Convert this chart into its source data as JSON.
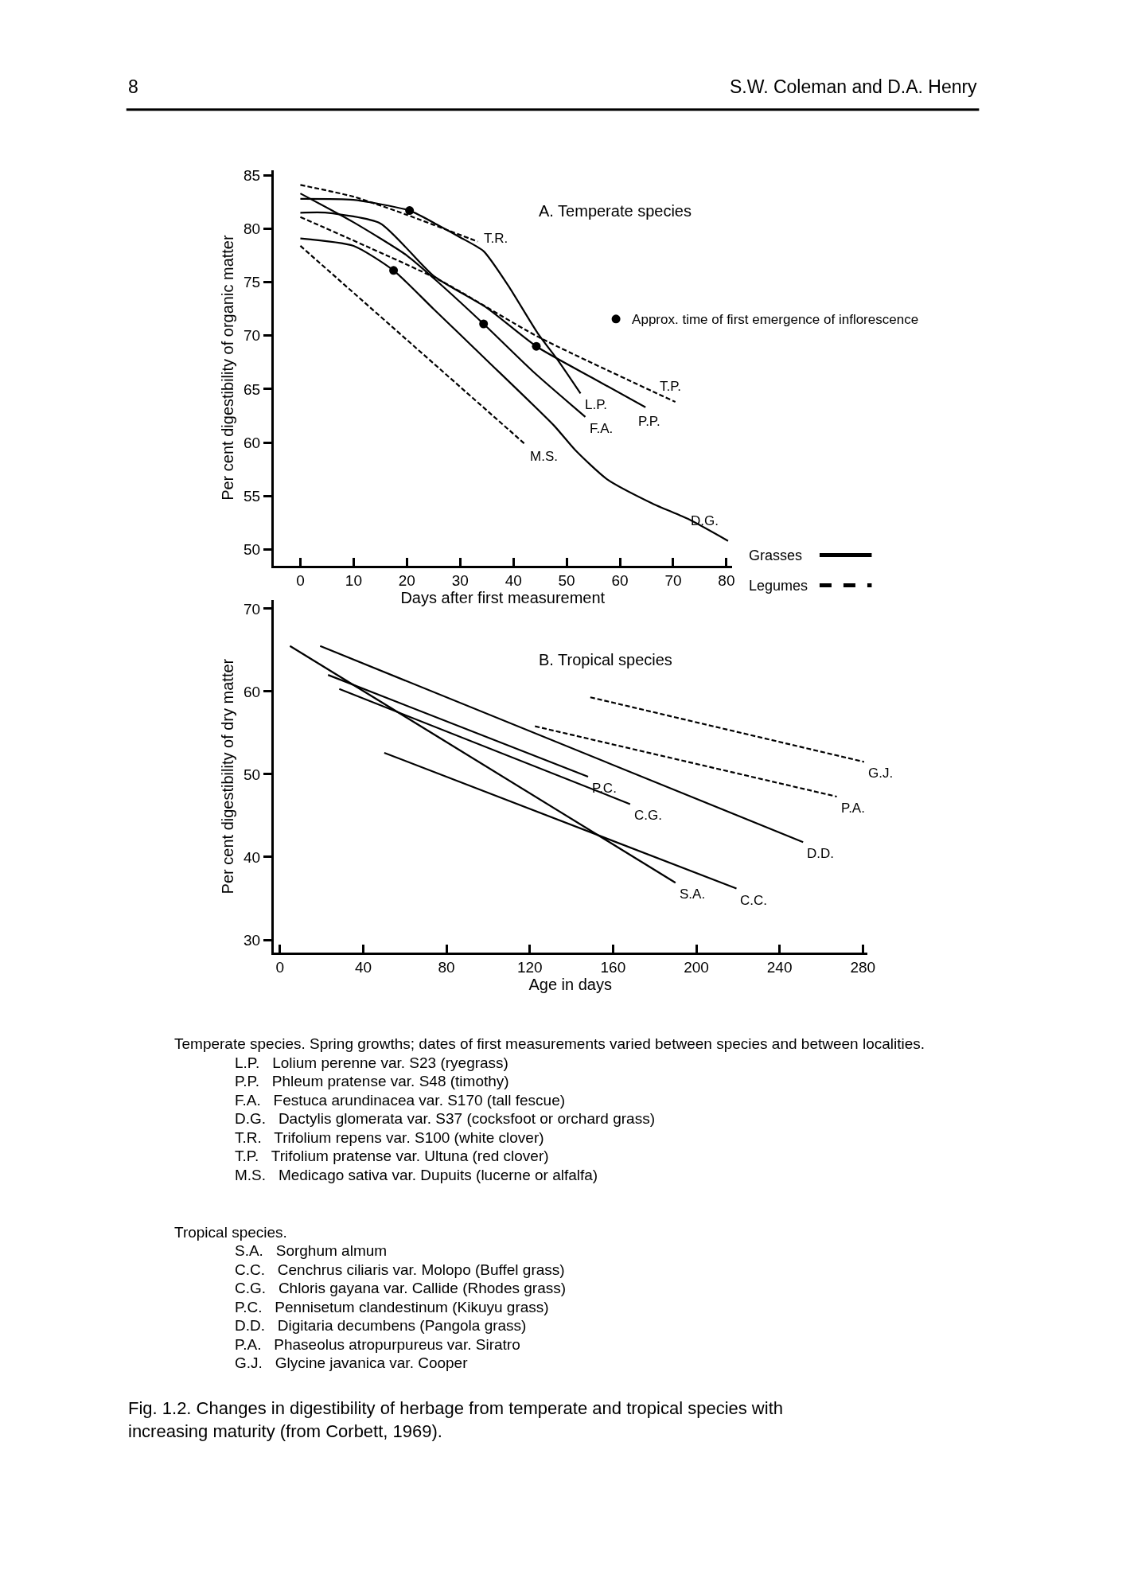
{
  "chart_data": [
    {
      "type": "line",
      "title": "A. Temperate species",
      "xlabel": "Days after first measurement",
      "ylabel": "Per cent digestibility of organic matter",
      "xlim": [
        -5,
        81
      ],
      "ylim": [
        48.5,
        85.5
      ],
      "xticks": [
        0,
        10,
        20,
        30,
        40,
        50,
        60,
        70,
        80
      ],
      "yticks": [
        50,
        55,
        60,
        65,
        70,
        75,
        80,
        85
      ],
      "legend": "right",
      "marker": "none",
      "series": [
        {
          "name": "L.P.",
          "color": "#000000",
          "line_style": "solid",
          "x": [
            0,
            10,
            20.5,
            26,
            30,
            34.4,
            39,
            44.6,
            48.5,
            52.6
          ],
          "values": [
            82.8,
            82.7,
            81.7,
            80.3,
            79.2,
            77.9,
            74.7,
            70.2,
            67.6,
            64.6
          ]
        },
        {
          "name": "P.P.",
          "color": "#000000",
          "line_style": "solid",
          "x": [
            0,
            5,
            15,
            25,
            35,
            44.3,
            55,
            64.8
          ],
          "values": [
            81.5,
            81.5,
            80.5,
            75.6,
            72.6,
            69,
            66,
            63.3
          ]
        },
        {
          "name": "F.A.",
          "color": "#000000",
          "line_style": "solid",
          "x": [
            0,
            10,
            20,
            26.1,
            34.4,
            44,
            53.5
          ],
          "values": [
            83.3,
            80.6,
            77.5,
            74.9,
            71.1,
            66.5,
            62.4
          ]
        },
        {
          "name": "D.G.",
          "color": "#000000",
          "line_style": "solid",
          "x": [
            0,
            10,
            17.5,
            25,
            35,
            47.6,
            51.6,
            57.5,
            66.1,
            73,
            80.3
          ],
          "values": [
            79.1,
            78.4,
            76.1,
            72.5,
            67.7,
            61.6,
            59.3,
            56.6,
            54.3,
            52.8,
            50.8
          ]
        },
        {
          "name": "T.R.",
          "color": "#000000",
          "line_style": "dashed",
          "x": [
            0,
            10,
            20,
            28,
            33.3
          ],
          "values": [
            84.1,
            83,
            81.3,
            79.8,
            78.8
          ]
        },
        {
          "name": "T.P.",
          "color": "#000000",
          "line_style": "dashed",
          "x": [
            0,
            26.1,
            44.6,
            70.4
          ],
          "values": [
            81.1,
            75.2,
            69.9,
            63.8
          ]
        },
        {
          "name": "M.S.",
          "color": "#000000",
          "line_style": "dashed",
          "x": [
            0,
            42.3
          ],
          "values": [
            78.4,
            59.8
          ]
        },
        {
          "name": "Approx. time of first emergence of inflorescence",
          "type": "scatter",
          "marker": "circle",
          "color": "#000000",
          "x": [
            17.5,
            20.5,
            34.4,
            44.3
          ],
          "values": [
            76.1,
            81.7,
            71.1,
            69
          ]
        }
      ],
      "annotations": [
        "8",
        "S.W. Coleman and D.A. Henry",
        "Grasses",
        "Legumes",
        "Temperate species. Spring growths; dates of first measurements varied between species and between localities.",
        "L.P.   Lolium perenne var. S23 (ryegrass)",
        "P.P.   Phleum pratense var. S48 (timothy)",
        "F.A.   Festuca arundinacea var. S170 (tall fescue)",
        "D.G.   Dactylis glomerata var. S37 (cocksfoot or orchard grass)",
        "T.R.   Trifolium repens var. S100 (white clover)",
        "T.P.   Trifolium pratense var. Ultuna (red clover)",
        "M.S.   Medicago sativa var. Dupuits (lucerne or alfalfa)"
      ]
    },
    {
      "type": "line",
      "title": "B. Tropical species",
      "xlabel": "Age in days",
      "ylabel": "Per cent digestibility of dry matter",
      "xlim": [
        -3,
        282
      ],
      "ylim": [
        28.5,
        71
      ],
      "xticks": [
        0,
        40,
        80,
        120,
        160,
        200,
        240,
        280
      ],
      "yticks": [
        30,
        40,
        50,
        60,
        70
      ],
      "marker": "none",
      "series": [
        {
          "name": "S.A.",
          "color": "#000000",
          "line_style": "solid",
          "x": [
            4.8,
            190
          ],
          "values": [
            65.5,
            36.9
          ]
        },
        {
          "name": "D.D.",
          "color": "#000000",
          "line_style": "solid",
          "x": [
            19.3,
            251.3
          ],
          "values": [
            65.5,
            41.8
          ]
        },
        {
          "name": "P.C.",
          "color": "#000000",
          "line_style": "solid",
          "x": [
            23.1,
            148
          ],
          "values": [
            62.0,
            49.7
          ]
        },
        {
          "name": "C.G.",
          "color": "#000000",
          "line_style": "solid",
          "x": [
            28.5,
            168.2
          ],
          "values": [
            60.3,
            46.4
          ]
        },
        {
          "name": "C.C.",
          "color": "#000000",
          "line_style": "solid",
          "x": [
            50.1,
            219.3
          ],
          "values": [
            52.6,
            36.2
          ]
        },
        {
          "name": "P.A.",
          "color": "#000000",
          "line_style": "dashed",
          "x": [
            122.5,
            267.5
          ],
          "values": [
            55.8,
            47.3
          ]
        },
        {
          "name": "G.J.",
          "color": "#000000",
          "line_style": "dashed",
          "x": [
            149.1,
            280.6
          ],
          "values": [
            59.3,
            51.5
          ]
        }
      ],
      "annotations": [
        "Tropical species.",
        "S.A.   Sorghum almum",
        "C.C.   Cenchrus ciliaris var. Molopo (Buffel grass)",
        "C.G.   Chloris gayana var. Callide (Rhodes grass)",
        "P.C.   Pennisetum clandestinum (Kikuyu grass)",
        "D.D.   Digitaria decumbens (Pangola grass)",
        "P.A.   Phaseolus atropurpureus var. Siratro",
        "G.J.   Glycine javanica var. Cooper",
        "Fig. 1.2. Changes in digestibility of herbage from temperate and tropical species with increasing maturity (from Corbett, 1969)."
      ]
    }
  ]
}
